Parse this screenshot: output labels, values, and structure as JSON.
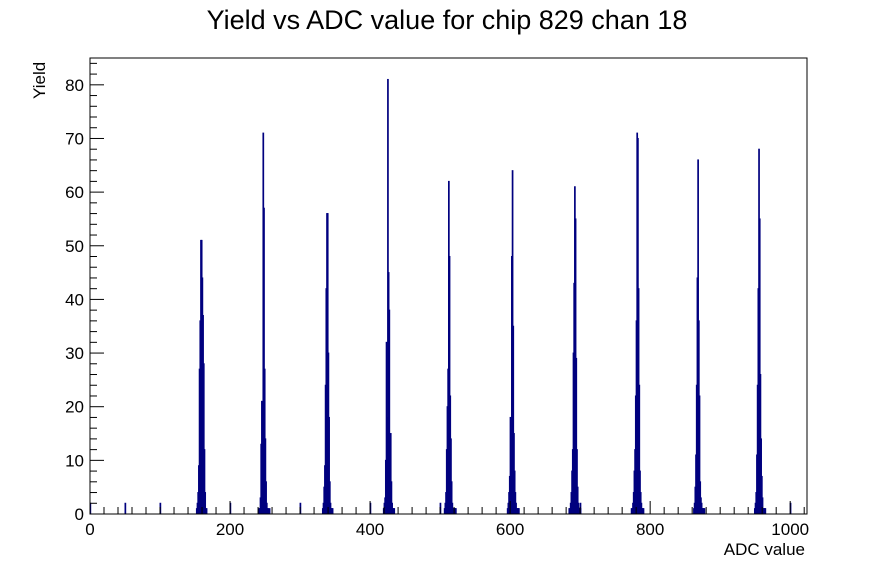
{
  "chart_data": {
    "type": "bar",
    "title": "Yield vs ADC value for chip 829 chan 18",
    "xlabel": "ADC value",
    "ylabel": "Yield",
    "xlim": [
      0,
      1024
    ],
    "ylim": [
      0,
      85
    ],
    "xticks": [
      0,
      200,
      400,
      600,
      800,
      1000
    ],
    "yticks": [
      0,
      10,
      20,
      30,
      40,
      50,
      60,
      70,
      80
    ],
    "grid": false,
    "legend": "none",
    "color": "#00007f",
    "bin_width": 1,
    "x": [
      152,
      153,
      154,
      155,
      156,
      157,
      158,
      159,
      160,
      161,
      162,
      163,
      164,
      165,
      166,
      241,
      242,
      243,
      244,
      245,
      246,
      247,
      248,
      249,
      250,
      251,
      252,
      253,
      254,
      255,
      256,
      332,
      333,
      334,
      335,
      336,
      337,
      338,
      339,
      340,
      341,
      342,
      343,
      344,
      345,
      346,
      419,
      420,
      421,
      422,
      423,
      424,
      425,
      426,
      427,
      428,
      429,
      430,
      431,
      432,
      433,
      434,
      506,
      507,
      508,
      509,
      510,
      511,
      512,
      513,
      514,
      515,
      516,
      517,
      518,
      519,
      520,
      521,
      522,
      596,
      597,
      598,
      599,
      600,
      601,
      602,
      603,
      604,
      605,
      606,
      607,
      608,
      609,
      610,
      611,
      612,
      684,
      685,
      686,
      687,
      688,
      689,
      690,
      691,
      692,
      693,
      694,
      695,
      696,
      697,
      698,
      699,
      700,
      773,
      774,
      775,
      776,
      777,
      778,
      779,
      780,
      781,
      782,
      783,
      784,
      785,
      786,
      787,
      788,
      789,
      790,
      862,
      863,
      864,
      865,
      866,
      867,
      868,
      869,
      870,
      871,
      872,
      873,
      874,
      875,
      876,
      877,
      949,
      950,
      951,
      952,
      953,
      954,
      955,
      956,
      957,
      958,
      959,
      960,
      961,
      962,
      963,
      964
    ],
    "values": [
      1,
      2,
      4,
      9,
      27,
      36,
      51,
      51,
      44,
      37,
      28,
      12,
      4,
      1,
      1,
      1,
      1,
      3,
      13,
      21,
      16,
      71,
      57,
      27,
      14,
      6,
      2,
      1,
      1,
      0,
      1,
      1,
      2,
      5,
      9,
      24,
      42,
      56,
      56,
      30,
      18,
      6,
      2,
      1,
      1,
      1,
      1,
      2,
      3,
      10,
      32,
      18,
      81,
      45,
      38,
      14,
      15,
      6,
      2,
      1,
      1,
      1,
      1,
      2,
      4,
      12,
      20,
      27,
      62,
      48,
      22,
      14,
      6,
      2,
      1,
      1,
      1,
      1,
      1,
      1,
      2,
      4,
      7,
      18,
      10,
      48,
      64,
      35,
      15,
      8,
      4,
      2,
      1,
      1,
      1,
      1,
      1,
      1,
      2,
      4,
      8,
      12,
      30,
      43,
      61,
      55,
      29,
      12,
      5,
      2,
      1,
      1,
      1,
      1,
      1,
      2,
      4,
      8,
      12,
      22,
      36,
      71,
      70,
      42,
      24,
      8,
      4,
      2,
      1,
      1,
      1,
      1,
      2,
      5,
      11,
      24,
      44,
      66,
      36,
      22,
      6,
      3,
      2,
      1,
      1,
      1,
      1,
      1,
      2,
      4,
      11,
      24,
      42,
      68,
      55,
      26,
      14,
      7,
      3,
      1,
      1,
      1,
      1
    ],
    "isolated_bins": [
      {
        "x": 0,
        "value": 2
      },
      {
        "x": 50,
        "value": 2
      },
      {
        "x": 100,
        "value": 2
      },
      {
        "x": 200,
        "value": 2
      },
      {
        "x": 300,
        "value": 2
      },
      {
        "x": 400,
        "value": 2
      },
      {
        "x": 500,
        "value": 2
      },
      {
        "x": 700,
        "value": 2
      },
      {
        "x": 1000,
        "value": 2
      }
    ]
  }
}
